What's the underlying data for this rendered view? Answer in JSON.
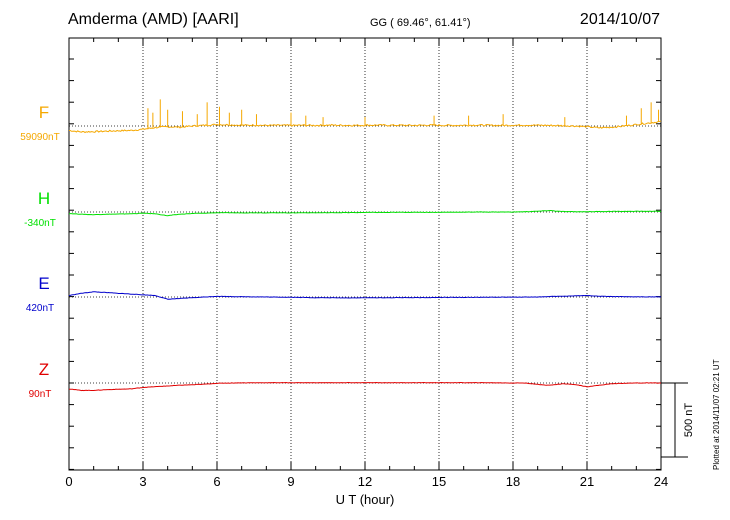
{
  "header": {
    "station": "Amderma (AMD)  [AARI]",
    "coords": "GG ( 69.46°,  61.41°)",
    "date": "2014/10/07"
  },
  "footer": {
    "plotted": "Plotted at 2014/11/07 02:21  UT"
  },
  "chart_data": {
    "type": "line",
    "xlabel": "U T (hour)",
    "xlim": [
      0,
      24
    ],
    "x_ticks": [
      "0",
      "3",
      "6",
      "9",
      "12",
      "15",
      "18",
      "21",
      "24"
    ],
    "scale_bar_label": "500 nT",
    "scale_bar_nT": 500,
    "grid": "dotted vertical lines every 3 hours; dotted baseline per component",
    "series": [
      {
        "name": "F",
        "baseline_label": "59090nT",
        "color": "#f5a800",
        "x": [
          0,
          0.5,
          1,
          1.5,
          2,
          2.5,
          3,
          3.5,
          4,
          4.5,
          5,
          5.5,
          6,
          6.5,
          7,
          7.5,
          8,
          8.5,
          9,
          9.5,
          10,
          10.5,
          11,
          11.5,
          12,
          12.5,
          13,
          13.5,
          14,
          14.5,
          15,
          15.5,
          16,
          16.5,
          17,
          17.5,
          18,
          18.5,
          19,
          19.5,
          20,
          20.5,
          21,
          21.5,
          22,
          22.5,
          23,
          23.5,
          24
        ],
        "values": [
          -30,
          -40,
          -38,
          -35,
          -32,
          -30,
          -22,
          -10,
          -5,
          -8,
          0,
          5,
          10,
          8,
          5,
          6,
          4,
          5,
          4,
          5,
          4,
          6,
          5,
          4,
          5,
          6,
          5,
          5,
          4,
          6,
          5,
          4,
          5,
          6,
          5,
          4,
          5,
          6,
          5,
          4,
          2,
          0,
          -5,
          -12,
          -8,
          0,
          10,
          20,
          30
        ],
        "spikes": [
          [
            3.2,
            120
          ],
          [
            3.4,
            90
          ],
          [
            3.7,
            180
          ],
          [
            4.0,
            110
          ],
          [
            4.6,
            100
          ],
          [
            5.2,
            80
          ],
          [
            5.6,
            160
          ],
          [
            6.1,
            130
          ],
          [
            6.5,
            90
          ],
          [
            7.0,
            110
          ],
          [
            7.6,
            80
          ],
          [
            9.0,
            90
          ],
          [
            9.6,
            70
          ],
          [
            10.3,
            60
          ],
          [
            12.0,
            60
          ],
          [
            14.8,
            70
          ],
          [
            16.2,
            70
          ],
          [
            17.6,
            80
          ],
          [
            20.1,
            60
          ],
          [
            22.6,
            70
          ],
          [
            23.2,
            120
          ],
          [
            23.6,
            160
          ],
          [
            23.9,
            110
          ]
        ]
      },
      {
        "name": "H",
        "baseline_label": "-340nT",
        "color": "#00e000",
        "x": [
          0,
          0.5,
          1,
          1.5,
          2,
          2.5,
          3,
          3.5,
          4,
          4.5,
          5,
          5.5,
          6,
          6.5,
          7,
          7.5,
          8,
          8.5,
          9,
          9.5,
          10,
          10.5,
          11,
          11.5,
          12,
          12.5,
          13,
          13.5,
          14,
          14.5,
          15,
          15.5,
          16,
          16.5,
          17,
          17.5,
          18,
          18.5,
          19,
          19.5,
          20,
          20.5,
          21,
          21.5,
          22,
          22.5,
          23,
          23.5,
          24
        ],
        "values": [
          -10,
          -15,
          -18,
          -15,
          -14,
          -12,
          -8,
          -12,
          -25,
          -15,
          -10,
          -8,
          -5,
          -5,
          -6,
          -5,
          -6,
          -5,
          -6,
          -5,
          -5,
          -5,
          -4,
          -4,
          -3,
          -3,
          -3,
          -2,
          -2,
          -2,
          -2,
          -1,
          -1,
          0,
          0,
          0,
          0,
          2,
          5,
          10,
          3,
          2,
          2,
          3,
          4,
          4,
          5,
          5,
          5
        ],
        "spikes": []
      },
      {
        "name": "E",
        "baseline_label": "420nT",
        "color": "#0000cc",
        "x": [
          0,
          0.5,
          1,
          1.5,
          2,
          2.5,
          3,
          3.5,
          4,
          4.5,
          5,
          5.5,
          6,
          6.5,
          7,
          7.5,
          8,
          8.5,
          9,
          9.5,
          10,
          10.5,
          11,
          11.5,
          12,
          12.5,
          13,
          13.5,
          14,
          14.5,
          15,
          15.5,
          16,
          16.5,
          17,
          17.5,
          18,
          18.5,
          19,
          19.5,
          20,
          20.5,
          21,
          21.5,
          22,
          22.5,
          23,
          23.5,
          24
        ],
        "values": [
          10,
          25,
          35,
          30,
          25,
          20,
          15,
          10,
          -15,
          -10,
          -5,
          0,
          5,
          3,
          2,
          1,
          0,
          -1,
          -2,
          -3,
          -5,
          -5,
          -6,
          -6,
          -5,
          -5,
          -5,
          -4,
          -4,
          -4,
          -3,
          -3,
          -3,
          -2,
          -2,
          -1,
          -1,
          0,
          0,
          3,
          5,
          8,
          10,
          5,
          3,
          2,
          1,
          1,
          0
        ],
        "spikes": []
      },
      {
        "name": "Z",
        "baseline_label": "90nT",
        "color": "#e00000",
        "x": [
          0,
          0.5,
          1,
          1.5,
          2,
          2.5,
          3,
          3.5,
          4,
          4.5,
          5,
          5.5,
          6,
          6.5,
          7,
          7.5,
          8,
          8.5,
          9,
          9.5,
          10,
          10.5,
          11,
          11.5,
          12,
          12.5,
          13,
          13.5,
          14,
          14.5,
          15,
          15.5,
          16,
          16.5,
          17,
          17.5,
          18,
          18.5,
          19,
          19.5,
          20,
          20.5,
          21,
          21.5,
          22,
          22.5,
          23,
          23.5,
          24
        ],
        "values": [
          -40,
          -50,
          -50,
          -45,
          -42,
          -40,
          -30,
          -25,
          -20,
          -15,
          -12,
          -8,
          -2,
          0,
          1,
          1,
          2,
          2,
          2,
          2,
          2,
          2,
          2,
          2,
          2,
          2,
          2,
          2,
          2,
          2,
          2,
          2,
          2,
          2,
          2,
          1,
          0,
          0,
          -10,
          -15,
          -5,
          -10,
          -25,
          -15,
          -5,
          -2,
          0,
          0,
          0
        ],
        "spikes": []
      }
    ]
  }
}
